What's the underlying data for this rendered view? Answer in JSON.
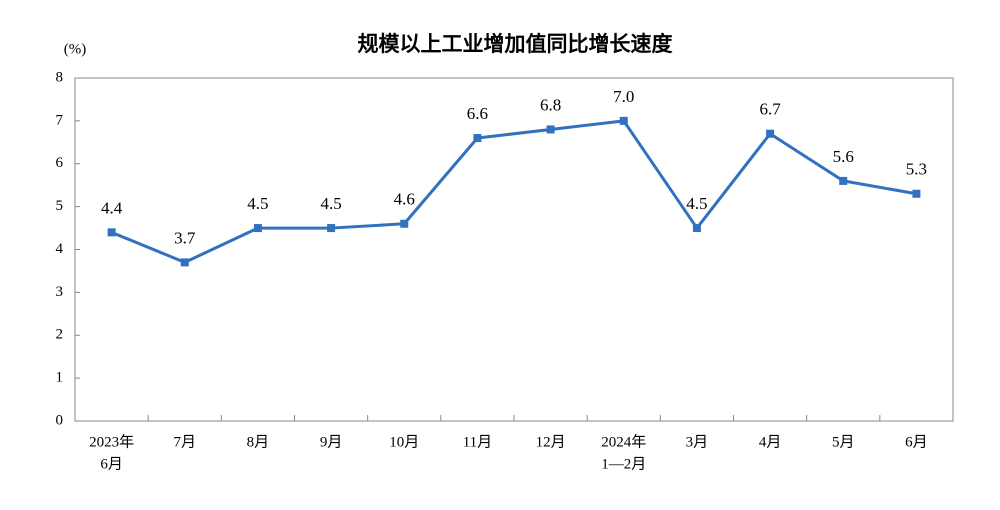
{
  "chart_data": {
    "type": "line",
    "title": "规模以上工业增加值同比增长速度",
    "y_label": "(%)",
    "categories": [
      [
        "2023年",
        "6月"
      ],
      [
        "7月"
      ],
      [
        "8月"
      ],
      [
        "9月"
      ],
      [
        "10月"
      ],
      [
        "11月"
      ],
      [
        "12月"
      ],
      [
        "2024年",
        "1—2月"
      ],
      [
        "3月"
      ],
      [
        "4月"
      ],
      [
        "5月"
      ],
      [
        "6月"
      ]
    ],
    "series": [
      {
        "name": "规模以上工业增加值同比增长速度",
        "color": "#3171c0",
        "values": [
          4.4,
          3.7,
          4.5,
          4.5,
          4.6,
          6.6,
          6.8,
          7.0,
          4.5,
          6.7,
          5.6,
          5.3
        ],
        "value_labels": [
          "4.4",
          "3.7",
          "4.5",
          "4.5",
          "4.6",
          "6.6",
          "6.8",
          "7.0",
          "4.5",
          "6.7",
          "5.6",
          "5.3"
        ]
      }
    ],
    "ylim": [
      0,
      8
    ],
    "yticks": [
      0,
      1,
      2,
      3,
      4,
      5,
      6,
      7,
      8
    ]
  }
}
